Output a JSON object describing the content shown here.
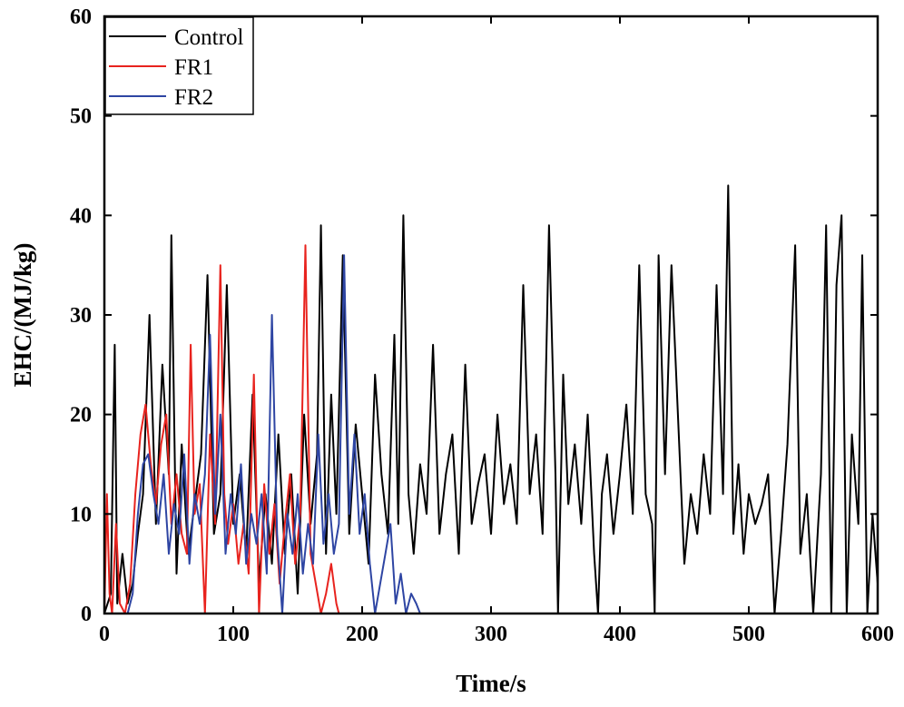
{
  "chart_data": {
    "type": "line",
    "title": "",
    "xlabel": "Time/s",
    "ylabel": "EHC/(MJ/kg)",
    "xlim": [
      0,
      600
    ],
    "ylim": [
      0,
      60
    ],
    "xticks": [
      0,
      100,
      200,
      300,
      400,
      500,
      600
    ],
    "yticks": [
      0,
      10,
      20,
      30,
      40,
      50,
      60
    ],
    "grid": false,
    "legend_position": "top-left",
    "series": [
      {
        "name": "Control",
        "color": "#000000",
        "x": [
          0,
          5,
          8,
          10,
          14,
          18,
          22,
          26,
          30,
          35,
          40,
          45,
          50,
          52,
          56,
          60,
          65,
          70,
          75,
          80,
          85,
          90,
          95,
          100,
          105,
          110,
          115,
          120,
          125,
          130,
          135,
          140,
          145,
          150,
          155,
          160,
          165,
          168,
          172,
          176,
          180,
          185,
          190,
          195,
          200,
          205,
          210,
          215,
          220,
          225,
          228,
          232,
          236,
          240,
          245,
          250,
          255,
          260,
          265,
          270,
          275,
          280,
          285,
          290,
          295,
          300,
          305,
          310,
          315,
          320,
          325,
          330,
          335,
          340,
          345,
          350,
          352,
          356,
          360,
          365,
          370,
          375,
          380,
          383,
          386,
          390,
          395,
          400,
          405,
          410,
          415,
          420,
          425,
          427,
          430,
          435,
          440,
          445,
          450,
          455,
          460,
          465,
          470,
          475,
          480,
          484,
          488,
          492,
          496,
          500,
          505,
          510,
          515,
          520,
          525,
          530,
          536,
          540,
          545,
          550,
          556,
          560,
          564,
          568,
          572,
          576,
          580,
          585,
          588,
          592,
          596,
          600
        ],
        "y": [
          0,
          2,
          27,
          1,
          6,
          1,
          3,
          8,
          12,
          30,
          9,
          25,
          14,
          38,
          4,
          17,
          6,
          11,
          16,
          34,
          8,
          12,
          33,
          9,
          14,
          6,
          22,
          3,
          12,
          5,
          18,
          6,
          14,
          2,
          20,
          9,
          16,
          39,
          6,
          22,
          10,
          36,
          8,
          19,
          12,
          5,
          24,
          14,
          8,
          28,
          9,
          40,
          12,
          6,
          15,
          10,
          27,
          8,
          14,
          18,
          6,
          25,
          9,
          13,
          16,
          8,
          20,
          11,
          15,
          9,
          33,
          12,
          18,
          8,
          39,
          14,
          0,
          24,
          11,
          17,
          9,
          20,
          6,
          0,
          12,
          16,
          8,
          14,
          21,
          10,
          35,
          12,
          9,
          0,
          36,
          14,
          35,
          20,
          5,
          12,
          8,
          16,
          10,
          33,
          12,
          43,
          8,
          15,
          6,
          12,
          9,
          11,
          14,
          0,
          8,
          17,
          37,
          6,
          12,
          0,
          14,
          39,
          0,
          33,
          40,
          0,
          18,
          9,
          36,
          0,
          10,
          3
        ]
      },
      {
        "name": "FR1",
        "color": "#e8231e",
        "x": [
          0,
          2,
          4,
          6,
          9,
          12,
          16,
          20,
          24,
          28,
          32,
          36,
          40,
          44,
          48,
          52,
          56,
          60,
          64,
          67,
          70,
          74,
          78,
          82,
          86,
          90,
          93,
          96,
          100,
          104,
          108,
          112,
          116,
          120,
          124,
          128,
          132,
          136,
          140,
          144,
          148,
          152,
          156,
          160,
          164,
          168,
          172,
          176,
          180,
          182
        ],
        "y": [
          0,
          12,
          2,
          0,
          9,
          1,
          0,
          3,
          12,
          18,
          21,
          15,
          11,
          17,
          20,
          9,
          14,
          8,
          6,
          27,
          10,
          13,
          0,
          18,
          9,
          35,
          12,
          7,
          11,
          5,
          9,
          4,
          24,
          0,
          13,
          6,
          11,
          3,
          9,
          14,
          5,
          10,
          37,
          6,
          3,
          0,
          2,
          5,
          1,
          0
        ]
      },
      {
        "name": "FR2",
        "color": "#2e45a3",
        "x": [
          0,
          5,
          10,
          15,
          18,
          22,
          26,
          30,
          34,
          38,
          42,
          46,
          50,
          54,
          58,
          62,
          66,
          70,
          74,
          78,
          82,
          86,
          90,
          94,
          98,
          102,
          106,
          110,
          114,
          118,
          122,
          126,
          130,
          134,
          138,
          142,
          146,
          150,
          154,
          158,
          162,
          166,
          170,
          174,
          178,
          182,
          186,
          190,
          194,
          198,
          202,
          206,
          210,
          214,
          218,
          222,
          226,
          230,
          234,
          238,
          242,
          245
        ],
        "y": [
          0,
          0,
          0,
          0,
          0,
          2,
          10,
          15,
          16,
          12,
          9,
          14,
          6,
          11,
          8,
          16,
          5,
          12,
          9,
          14,
          28,
          10,
          20,
          6,
          12,
          8,
          15,
          5,
          10,
          7,
          12,
          4,
          30,
          8,
          0,
          10,
          6,
          12,
          4,
          9,
          5,
          18,
          7,
          12,
          6,
          9,
          36,
          10,
          18,
          8,
          12,
          5,
          0,
          3,
          6,
          9,
          1,
          4,
          0,
          2,
          1,
          0
        ]
      }
    ]
  }
}
